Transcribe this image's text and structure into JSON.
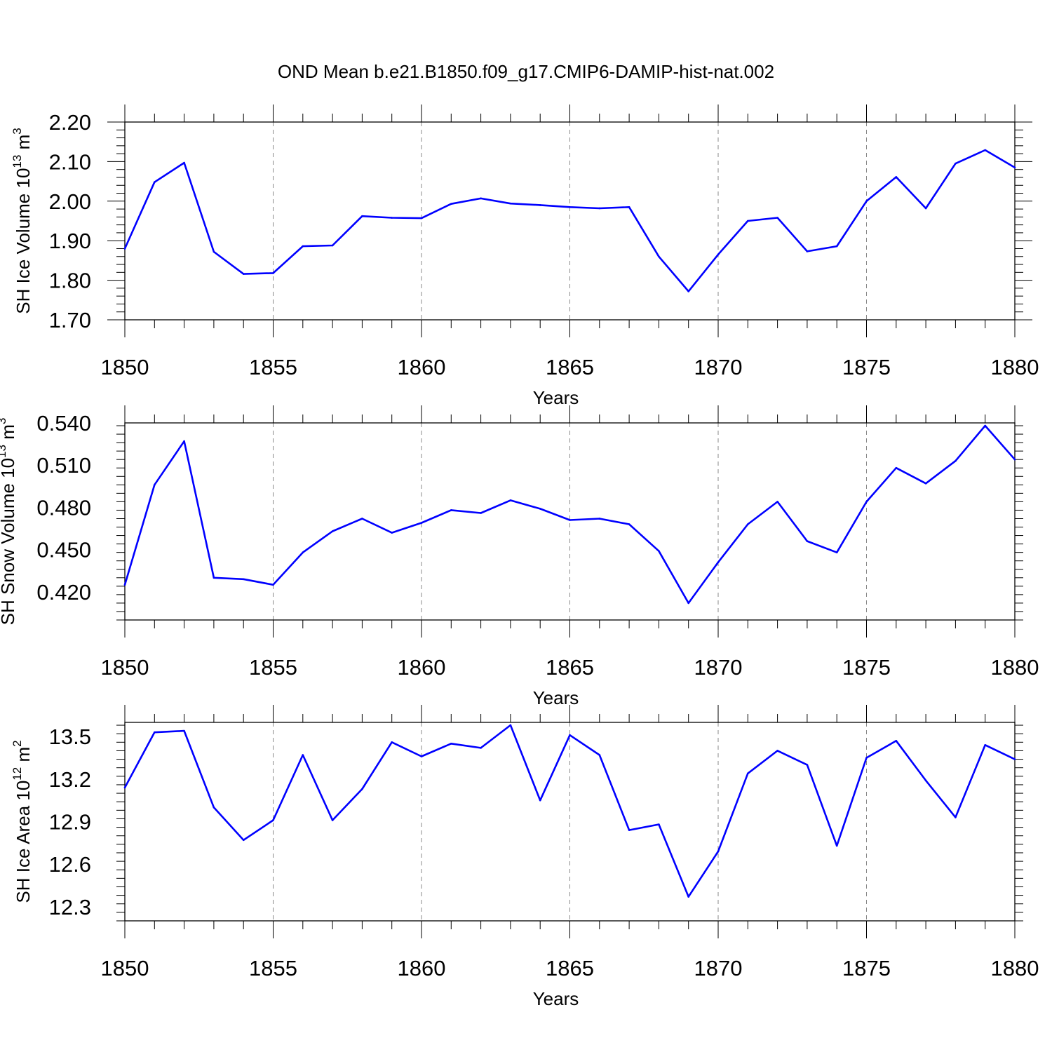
{
  "title": "OND Mean b.e21.B1850.f09_g17.CMIP6-DAMIP-hist-nat.002",
  "line_color": "#0000ff",
  "chart_data": [
    {
      "type": "line",
      "title": "OND Mean b.e21.B1850.f09_g17.CMIP6-DAMIP-hist-nat.002",
      "xlabel": "Years",
      "ylabel": "SH Ice Volume 10",
      "ylabel_exp": "13",
      "ylabel_unit": " m",
      "ylabel_unit_exp": "3",
      "xlim": [
        1850,
        1880
      ],
      "ylim": [
        1.7,
        2.2
      ],
      "x_ticks": [
        1850,
        1855,
        1860,
        1865,
        1870,
        1875,
        1880
      ],
      "x_tick_labels": [
        "1850",
        "1855",
        "1860",
        "1865",
        "1870",
        "1875",
        "1880"
      ],
      "y_ticks": [
        1.7,
        1.8,
        1.9,
        2.0,
        2.1,
        2.2
      ],
      "y_tick_labels": [
        "1.70",
        "1.80",
        "1.90",
        "2.00",
        "2.10",
        "2.20"
      ],
      "grid": "vertical dashed at major x ticks",
      "x": [
        1850,
        1851,
        1852,
        1853,
        1854,
        1855,
        1856,
        1857,
        1858,
        1859,
        1860,
        1861,
        1862,
        1863,
        1864,
        1865,
        1866,
        1867,
        1868,
        1869,
        1870,
        1871,
        1872,
        1873,
        1874,
        1875,
        1876,
        1877,
        1878,
        1879,
        1880
      ],
      "values": [
        1.88,
        2.048,
        2.097,
        1.872,
        1.816,
        1.818,
        1.886,
        1.888,
        1.962,
        1.958,
        1.957,
        1.993,
        2.007,
        1.994,
        1.99,
        1.985,
        1.982,
        1.985,
        1.86,
        1.772,
        1.865,
        1.95,
        1.958,
        1.873,
        1.886,
        2.0,
        2.061,
        1.982,
        2.095,
        2.129,
        2.085
      ]
    },
    {
      "type": "line",
      "xlabel": "Years",
      "ylabel": "SH Snow Volume 10",
      "ylabel_exp": "13",
      "ylabel_unit": " m",
      "ylabel_unit_exp": "3",
      "xlim": [
        1850,
        1880
      ],
      "ylim": [
        0.4,
        0.54
      ],
      "x_ticks": [
        1850,
        1855,
        1860,
        1865,
        1870,
        1875,
        1880
      ],
      "x_tick_labels": [
        "1850",
        "1855",
        "1860",
        "1865",
        "1870",
        "1875",
        "1880"
      ],
      "y_ticks": [
        0.42,
        0.45,
        0.48,
        0.51,
        0.54
      ],
      "y_tick_labels": [
        "0.420",
        "0.450",
        "0.480",
        "0.510",
        "0.540"
      ],
      "grid": "vertical dashed at major x ticks",
      "x": [
        1850,
        1851,
        1852,
        1853,
        1854,
        1855,
        1856,
        1857,
        1858,
        1859,
        1860,
        1861,
        1862,
        1863,
        1864,
        1865,
        1866,
        1867,
        1868,
        1869,
        1870,
        1871,
        1872,
        1873,
        1874,
        1875,
        1876,
        1877,
        1878,
        1879,
        1880
      ],
      "values": [
        0.425,
        0.496,
        0.527,
        0.43,
        0.429,
        0.425,
        0.448,
        0.463,
        0.472,
        0.462,
        0.469,
        0.478,
        0.476,
        0.485,
        0.479,
        0.471,
        0.472,
        0.468,
        0.449,
        0.412,
        0.441,
        0.468,
        0.484,
        0.456,
        0.448,
        0.484,
        0.508,
        0.497,
        0.513,
        0.538,
        0.514
      ]
    },
    {
      "type": "line",
      "xlabel": "Years",
      "ylabel": "SH Ice Area 10",
      "ylabel_exp": "12",
      "ylabel_unit": " m",
      "ylabel_unit_exp": "2",
      "xlim": [
        1850,
        1880
      ],
      "ylim": [
        12.2,
        13.6
      ],
      "x_ticks": [
        1850,
        1855,
        1860,
        1865,
        1870,
        1875,
        1880
      ],
      "x_tick_labels": [
        "1850",
        "1855",
        "1860",
        "1865",
        "1870",
        "1875",
        "1880"
      ],
      "y_ticks": [
        12.3,
        12.6,
        12.9,
        13.2,
        13.5
      ],
      "y_tick_labels": [
        "12.3",
        "12.6",
        "12.9",
        "13.2",
        "13.5"
      ],
      "grid": "vertical dashed at major x ticks",
      "x": [
        1850,
        1851,
        1852,
        1853,
        1854,
        1855,
        1856,
        1857,
        1858,
        1859,
        1860,
        1861,
        1862,
        1863,
        1864,
        1865,
        1866,
        1867,
        1868,
        1869,
        1870,
        1871,
        1872,
        1873,
        1874,
        1875,
        1876,
        1877,
        1878,
        1879,
        1880
      ],
      "values": [
        13.14,
        13.53,
        13.54,
        13.0,
        12.77,
        12.91,
        13.37,
        12.91,
        13.13,
        13.46,
        13.36,
        13.45,
        13.42,
        13.58,
        13.05,
        13.51,
        13.37,
        12.84,
        12.88,
        12.37,
        12.69,
        13.24,
        13.4,
        13.3,
        12.73,
        13.35,
        13.47,
        13.19,
        12.93,
        13.44,
        13.34
      ]
    }
  ]
}
